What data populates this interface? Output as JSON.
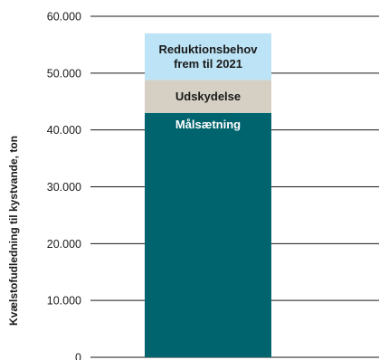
{
  "chart_data": {
    "type": "bar",
    "stacked": true,
    "title": "",
    "xlabel": "",
    "ylabel": "Kvælstofudledning til kystvande, ton",
    "ylim": [
      0,
      60000
    ],
    "yticks": [
      0,
      10000,
      20000,
      30000,
      40000,
      50000,
      60000
    ],
    "ytick_labels": [
      "0",
      "10.000",
      "20.000",
      "30.000",
      "40.000",
      "50.000",
      "60.000"
    ],
    "grid": true,
    "legend": "none",
    "categories": [
      ""
    ],
    "series": [
      {
        "label_lines": [
          "Målsætning"
        ],
        "values": [
          43000
        ],
        "color": "#00646e",
        "label_color": "#ffffff"
      },
      {
        "label_lines": [
          "Udskydelse"
        ],
        "values": [
          5800
        ],
        "color": "#d5d0c3",
        "label_color": "#1a1a1a"
      },
      {
        "label_lines": [
          "Reduktionsbehov",
          "frem til 2021"
        ],
        "values": [
          8200
        ],
        "color": "#bde3f6",
        "label_color": "#1a1a1a"
      }
    ]
  }
}
